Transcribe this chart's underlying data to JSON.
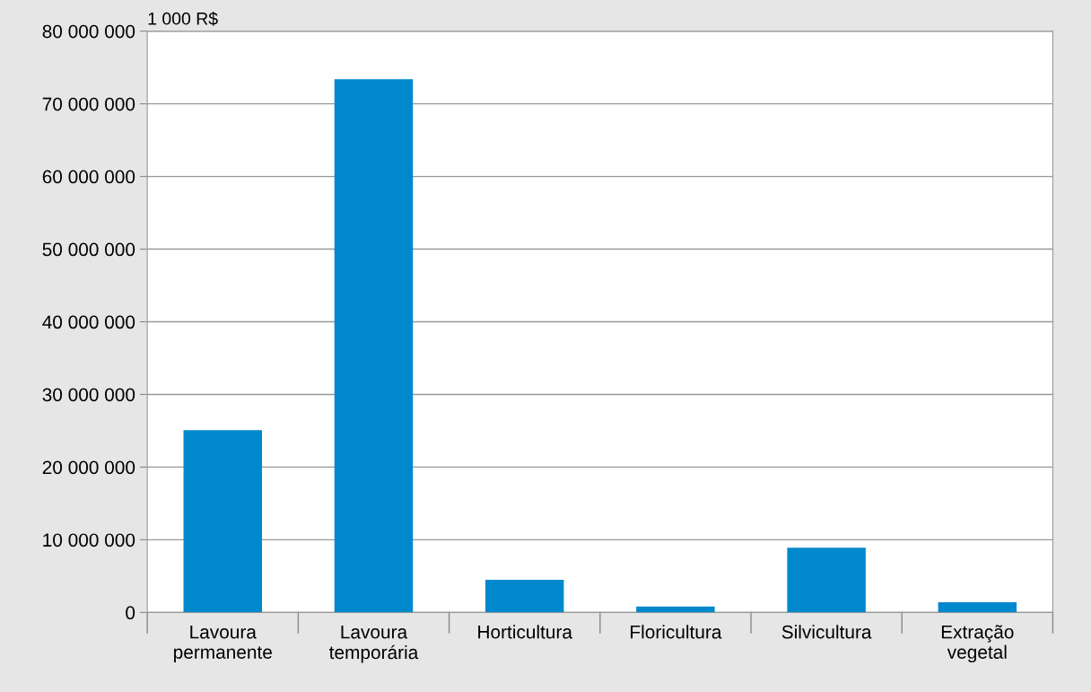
{
  "chart_data": {
    "type": "bar",
    "ylabel": "1 000 R$",
    "categories": [
      "Lavoura\npermanente",
      "Lavoura\ntemporária",
      "Horticultura",
      "Floricultura",
      "Silvicultura",
      "Extração\nvegetal"
    ],
    "values": [
      25100000,
      73400000,
      4500000,
      800000,
      8900000,
      1400000
    ],
    "color": "#0088cc",
    "ylim": [
      0,
      80000000
    ],
    "yticks": [
      {
        "value": 0,
        "label": "0"
      },
      {
        "value": 10000000,
        "label": "10 000 000"
      },
      {
        "value": 20000000,
        "label": "20 000 000"
      },
      {
        "value": 30000000,
        "label": "30 000 000"
      },
      {
        "value": 40000000,
        "label": "40 000 000"
      },
      {
        "value": 50000000,
        "label": "50 000 000"
      },
      {
        "value": 60000000,
        "label": "60 000 000"
      },
      {
        "value": 70000000,
        "label": "70 000 000"
      },
      {
        "value": 80000000,
        "label": "80 000 000"
      }
    ],
    "grid": "y"
  }
}
